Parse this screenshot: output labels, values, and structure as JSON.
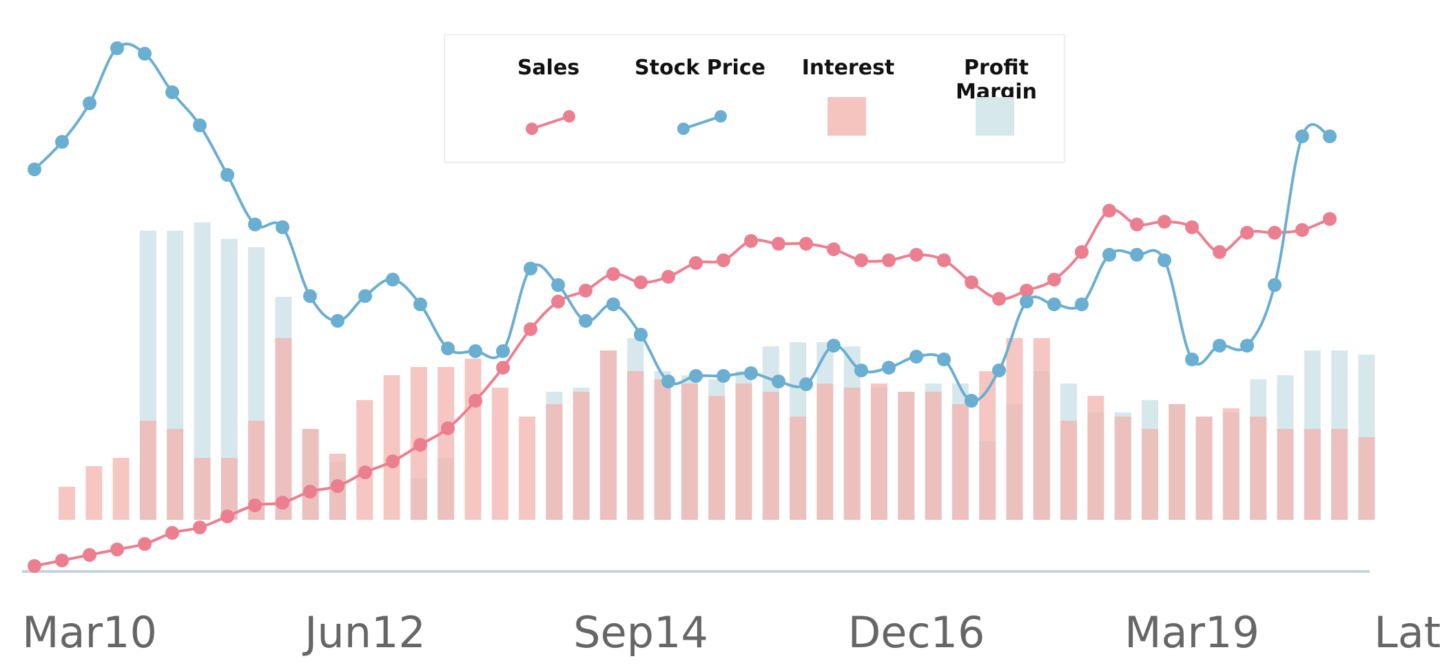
{
  "chart_data": {
    "type": "bar",
    "title": "",
    "xlabel": "",
    "ylabel": "",
    "x_tick_labels": [
      "Mar10",
      "Jun12",
      "Sep14",
      "Dec16",
      "Mar19",
      "Latest"
    ],
    "x_tick_indices": [
      1,
      11,
      21,
      31,
      41,
      51
    ],
    "legend_position": "top-center",
    "grid": false,
    "ylim": [
      0,
      100
    ],
    "series": [
      {
        "name": "Sales",
        "kind": "line",
        "color": "#ec7f8f",
        "values": [
          1,
          2,
          3,
          4,
          5,
          7,
          8,
          10,
          12,
          12.5,
          14.5,
          15.5,
          18,
          20,
          23,
          26,
          31,
          37,
          44,
          49,
          51,
          54,
          52.5,
          53.5,
          56,
          56.5,
          60,
          59.5,
          59.5,
          58.5,
          56.5,
          56.5,
          57.5,
          56.5,
          52.5,
          49.5,
          51,
          53,
          58,
          65.5,
          63,
          63.5,
          62.5,
          58,
          61.5,
          61.5,
          62,
          64
        ]
      },
      {
        "name": "Stock Price",
        "kind": "line",
        "color": "#6aaed2",
        "values": [
          73,
          78,
          85,
          95,
          94,
          87,
          81,
          72,
          63,
          62.5,
          50,
          45.5,
          50,
          53,
          48.5,
          40.5,
          40,
          40,
          55,
          52,
          45.5,
          48.5,
          43,
          34.5,
          35.5,
          35.5,
          36,
          34.5,
          34,
          41,
          36.5,
          37,
          39,
          38.5,
          31,
          36.5,
          49,
          48.5,
          48.5,
          57.5,
          57.5,
          56.5,
          38.5,
          41,
          41,
          52,
          79,
          79
        ]
      },
      {
        "name": "Interest",
        "kind": "bar",
        "color": "#f2b0aa",
        "values": [
          8,
          13,
          15,
          24,
          22,
          15,
          15,
          24,
          44,
          22,
          16,
          29,
          35,
          37,
          37,
          39,
          32,
          25,
          28,
          31,
          41,
          36,
          34,
          33,
          30,
          33,
          31,
          25,
          33,
          32,
          33,
          31,
          31,
          28,
          36,
          44,
          44,
          24,
          30,
          25,
          22,
          28,
          25,
          27,
          25,
          22,
          22,
          22,
          20
        ]
      },
      {
        "name": "Profit Margin",
        "kind": "bar",
        "color": "#d6e8ec",
        "values": [
          0,
          0,
          0,
          70,
          70,
          72,
          68,
          66,
          54,
          22,
          14,
          0,
          0,
          10,
          15,
          0,
          0,
          0,
          31,
          32,
          41,
          44,
          36,
          35,
          34,
          36,
          42,
          43,
          43,
          42,
          32,
          31,
          33,
          33,
          19,
          28,
          36,
          33,
          26,
          26,
          29,
          28,
          25,
          26,
          34,
          35,
          41,
          41,
          40
        ]
      }
    ]
  }
}
